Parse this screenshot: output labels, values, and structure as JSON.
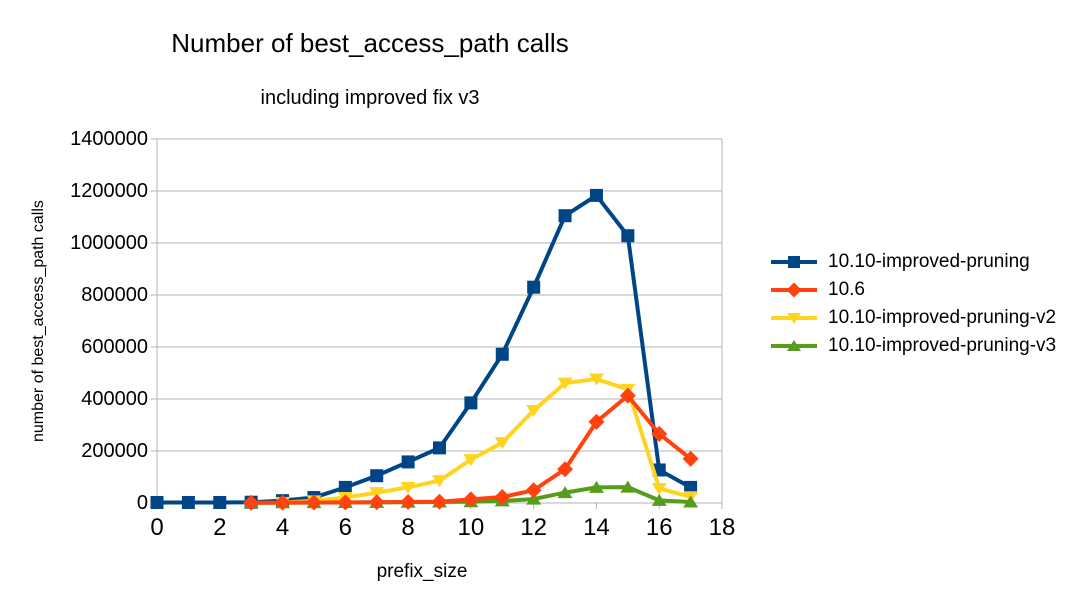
{
  "chart_data": {
    "type": "line",
    "title": "Number of best_access_path calls",
    "subtitle": "including improved fix v3",
    "xlabel": "prefix_size",
    "ylabel": "number of best_access_path calls",
    "x": [
      0,
      1,
      2,
      3,
      4,
      5,
      6,
      7,
      8,
      9,
      10,
      11,
      12,
      13,
      14,
      15,
      16,
      17
    ],
    "xlim": [
      0,
      18
    ],
    "ylim": [
      0,
      1400000
    ],
    "x_tick_step": 2,
    "y_tick_step": 200000,
    "grid": "horizontal",
    "legend_position": "right",
    "background_color": "#ffffff",
    "axis_color": "#b3b3b3",
    "text_color": "#000000",
    "series": [
      {
        "name": "10.10-improved-pruning",
        "color": "#004586",
        "marker": "square",
        "values": [
          2000,
          2000,
          2000,
          3000,
          9000,
          21000,
          60000,
          105000,
          158000,
          212000,
          385000,
          572000,
          830000,
          1105000,
          1183000,
          1028000,
          127000,
          60000
        ]
      },
      {
        "name": "10.6",
        "color": "#ff420e",
        "marker": "diamond",
        "values": [
          null,
          null,
          null,
          1000,
          1500,
          2000,
          2500,
          3000,
          4000,
          5000,
          14000,
          23000,
          49000,
          130000,
          312000,
          413000,
          266000,
          170000
        ]
      },
      {
        "name": "10.10-improved-pruning-v2",
        "color": "#ffd320",
        "marker": "triangle-down",
        "values": [
          null,
          null,
          null,
          null,
          2000,
          8000,
          21000,
          40000,
          60000,
          86000,
          167000,
          232000,
          356000,
          461000,
          477000,
          437000,
          56000,
          24000
        ]
      },
      {
        "name": "10.10-improved-pruning-v3",
        "color": "#579d1c",
        "marker": "triangle-up",
        "values": [
          null,
          null,
          null,
          1000,
          1000,
          1500,
          2000,
          2500,
          3000,
          4000,
          5000,
          8000,
          15000,
          40000,
          60000,
          61000,
          10000,
          4000
        ]
      }
    ],
    "draw_order": [
      0,
      2,
      3,
      1
    ]
  }
}
